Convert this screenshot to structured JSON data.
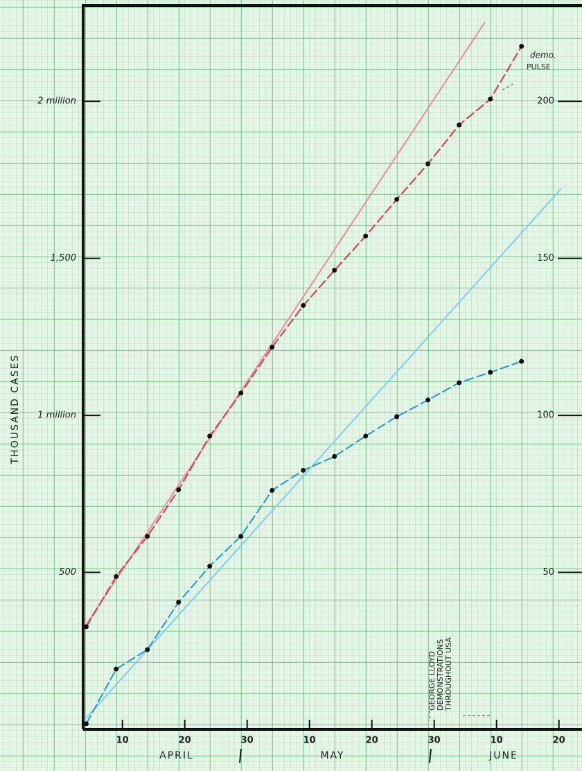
{
  "chart_data": {
    "type": "scatter-line",
    "y_label": "THOUSAND CASES",
    "months": [
      "APRIL",
      "MAY",
      "JUNE"
    ],
    "annotations": {
      "pulse": [
        "demo.",
        "PULSE"
      ],
      "lloyd": [
        "GEORGE LLOYD",
        "DEMONSTRATIONS",
        "THROUGHOUT USA"
      ]
    },
    "x": [
      4.2,
      9,
      14,
      19,
      24,
      29,
      34,
      39,
      44,
      49,
      54,
      59,
      64,
      69,
      74
    ],
    "series": [
      {
        "color": "#e0344a",
        "values": [
          327,
          487,
          615,
          763,
          934,
          1071,
          1217,
          1350,
          1462,
          1571,
          1688,
          1801,
          1925,
          2007,
          2175
        ]
      },
      {
        "color": "#2196d8",
        "axis": "y2",
        "values": [
          1.8,
          19.2,
          25.4,
          40.5,
          52.0,
          61.5,
          76.1,
          82.5,
          86.9,
          93.4,
          99.6,
          104.9,
          110.4,
          113.7,
          117.2
        ]
      }
    ],
    "xlim": [
      3.7,
      83.7
    ],
    "xticks": [
      {
        "value": 10,
        "label": "10"
      },
      {
        "value": 20,
        "label": "20"
      },
      {
        "value": 30,
        "label": "30"
      },
      {
        "value": 40,
        "label": "10"
      },
      {
        "value": 50,
        "label": "20"
      },
      {
        "value": 60,
        "label": "30"
      },
      {
        "value": 70,
        "label": "10"
      },
      {
        "value": 80,
        "label": "20"
      }
    ],
    "ylim": [
      0,
      2305
    ],
    "yticks": [
      {
        "value": 500,
        "label": "500"
      },
      {
        "value": 1000,
        "label": "1 million"
      },
      {
        "value": 1500,
        "label": "1,500"
      },
      {
        "value": 2000,
        "label": "2 million"
      }
    ],
    "y2lim": [
      0,
      230.5
    ],
    "y2ticks": [
      50,
      100,
      150,
      200
    ]
  }
}
